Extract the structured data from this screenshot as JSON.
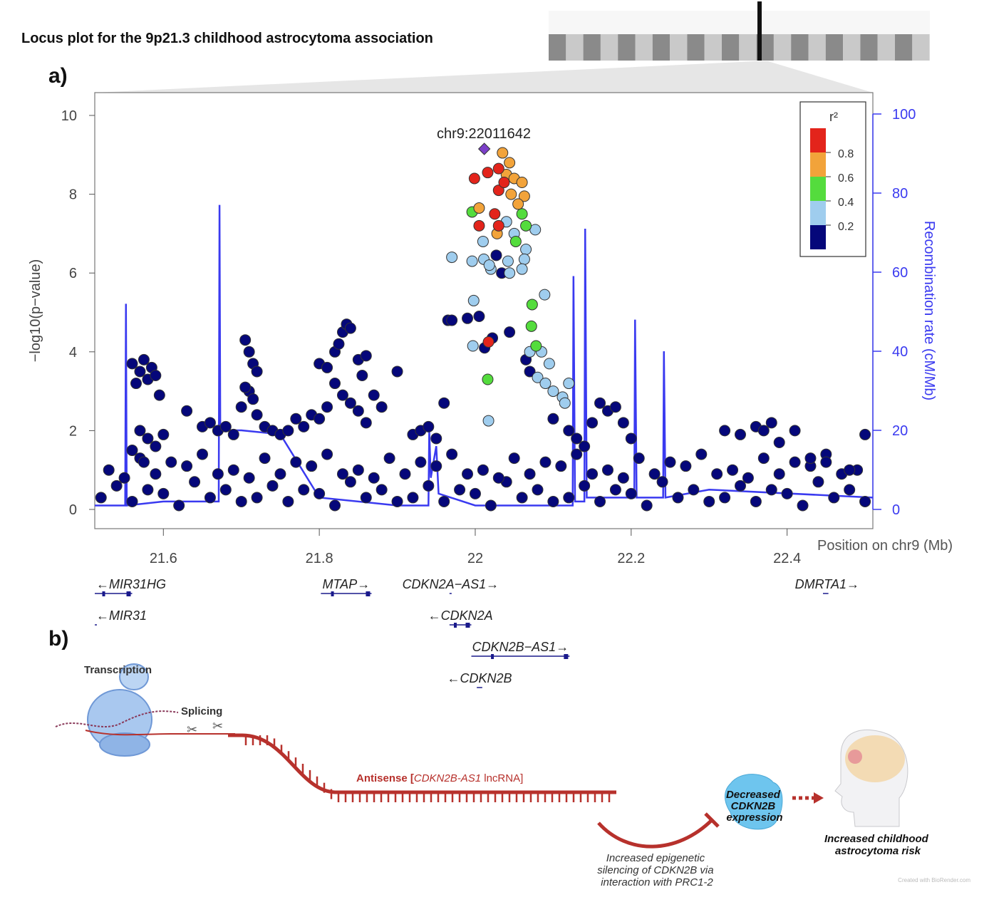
{
  "figure_title": "Locus plot for the 9p21.3 childhood astrocytoma association",
  "panel_a_label": "a)",
  "panel_b_label": "b)",
  "colors": {
    "lead": "#7b3fc8",
    "r2_0.8_1.0": "#e3241b",
    "r2_0.6_0.8": "#f2a33a",
    "r2_0.4_0.6": "#54dc3d",
    "r2_0.2_0.4": "#9fcdee",
    "r2_0.0_0.2": "#05077a",
    "recombination": "#3a3af0",
    "antisense": "#b7312c"
  },
  "chart_data": {
    "type": "scatter",
    "xlabel": "Position on chr9 (Mb)",
    "ylabel": "−log10(p−value)",
    "ylabel_right": "Recombination rate (cM/Mb)",
    "xlim": [
      21.512,
      22.51
    ],
    "ylim": [
      0,
      10
    ],
    "ylim_right": [
      0,
      100
    ],
    "x_ticks": [
      "21.6",
      "21.8",
      "22",
      "22.2",
      "22.4"
    ],
    "y_ticks": [
      "0",
      "2",
      "4",
      "6",
      "8",
      "10"
    ],
    "y_ticks_right": [
      "0",
      "20",
      "40",
      "60",
      "80",
      "100"
    ],
    "lead_snp": {
      "label": "chr9:22011642",
      "x": 22.0116,
      "y": 9.15
    },
    "legend": {
      "title": "r²",
      "labels": [
        "0.8",
        "0.6",
        "0.4",
        "0.2"
      ],
      "placement": "top-right"
    },
    "points": {
      "r2_0.0_0.2": [
        [
          21.52,
          0.3
        ],
        [
          21.54,
          0.6
        ],
        [
          21.56,
          0.2
        ],
        [
          21.58,
          0.5
        ],
        [
          21.6,
          0.4
        ],
        [
          21.62,
          0.1
        ],
        [
          21.64,
          0.7
        ],
        [
          21.66,
          0.3
        ],
        [
          21.68,
          0.5
        ],
        [
          21.7,
          0.2
        ],
        [
          21.72,
          0.3
        ],
        [
          21.74,
          0.6
        ],
        [
          21.76,
          0.2
        ],
        [
          21.78,
          0.5
        ],
        [
          21.8,
          0.4
        ],
        [
          21.82,
          0.1
        ],
        [
          21.84,
          0.7
        ],
        [
          21.86,
          0.3
        ],
        [
          21.88,
          0.5
        ],
        [
          21.9,
          0.2
        ],
        [
          21.92,
          0.3
        ],
        [
          21.94,
          0.6
        ],
        [
          21.96,
          0.2
        ],
        [
          21.98,
          0.5
        ],
        [
          22.0,
          0.4
        ],
        [
          22.02,
          0.1
        ],
        [
          22.04,
          0.7
        ],
        [
          22.06,
          0.3
        ],
        [
          22.08,
          0.5
        ],
        [
          22.1,
          0.2
        ],
        [
          22.12,
          0.3
        ],
        [
          22.14,
          0.6
        ],
        [
          22.16,
          0.2
        ],
        [
          22.18,
          0.5
        ],
        [
          22.2,
          0.4
        ],
        [
          22.22,
          0.1
        ],
        [
          22.24,
          0.7
        ],
        [
          22.26,
          0.3
        ],
        [
          22.28,
          0.5
        ],
        [
          22.3,
          0.2
        ],
        [
          22.32,
          0.3
        ],
        [
          22.34,
          0.6
        ],
        [
          22.36,
          0.2
        ],
        [
          22.38,
          0.5
        ],
        [
          22.4,
          0.4
        ],
        [
          22.42,
          0.1
        ],
        [
          22.44,
          0.7
        ],
        [
          22.46,
          0.3
        ],
        [
          22.48,
          0.5
        ],
        [
          22.5,
          0.2
        ],
        [
          21.53,
          1.0
        ],
        [
          21.55,
          0.8
        ],
        [
          21.57,
          1.3
        ],
        [
          21.59,
          0.9
        ],
        [
          21.61,
          1.2
        ],
        [
          21.63,
          1.1
        ],
        [
          21.65,
          1.4
        ],
        [
          21.67,
          0.9
        ],
        [
          21.69,
          1.0
        ],
        [
          21.71,
          0.8
        ],
        [
          21.73,
          1.3
        ],
        [
          21.75,
          0.9
        ],
        [
          21.77,
          1.2
        ],
        [
          21.79,
          1.1
        ],
        [
          21.81,
          1.4
        ],
        [
          21.83,
          0.9
        ],
        [
          21.85,
          1.0
        ],
        [
          21.87,
          0.8
        ],
        [
          21.89,
          1.3
        ],
        [
          21.91,
          0.9
        ],
        [
          21.93,
          1.2
        ],
        [
          21.95,
          1.1
        ],
        [
          21.97,
          1.4
        ],
        [
          21.99,
          0.9
        ],
        [
          22.01,
          1.0
        ],
        [
          22.03,
          0.8
        ],
        [
          22.05,
          1.3
        ],
        [
          22.07,
          0.9
        ],
        [
          22.09,
          1.2
        ],
        [
          22.11,
          1.1
        ],
        [
          22.13,
          1.4
        ],
        [
          22.15,
          0.9
        ],
        [
          22.17,
          1.0
        ],
        [
          22.19,
          0.8
        ],
        [
          22.21,
          1.3
        ],
        [
          22.23,
          0.9
        ],
        [
          22.25,
          1.2
        ],
        [
          22.27,
          1.1
        ],
        [
          22.29,
          1.4
        ],
        [
          22.31,
          0.9
        ],
        [
          22.33,
          1.0
        ],
        [
          22.35,
          0.8
        ],
        [
          22.37,
          1.3
        ],
        [
          22.39,
          0.9
        ],
        [
          22.41,
          1.2
        ],
        [
          22.43,
          1.1
        ],
        [
          22.45,
          1.4
        ],
        [
          22.47,
          0.9
        ],
        [
          22.49,
          1.0
        ],
        [
          21.56,
          3.7
        ],
        [
          21.57,
          3.5
        ],
        [
          21.575,
          3.8
        ],
        [
          21.58,
          3.3
        ],
        [
          21.585,
          3.6
        ],
        [
          21.59,
          3.4
        ],
        [
          21.565,
          3.2
        ],
        [
          21.595,
          2.9
        ],
        [
          21.57,
          2.0
        ],
        [
          21.58,
          1.8
        ],
        [
          21.59,
          1.6
        ],
        [
          21.6,
          1.9
        ],
        [
          21.56,
          1.5
        ],
        [
          21.575,
          1.2
        ],
        [
          21.63,
          2.5
        ],
        [
          21.65,
          2.1
        ],
        [
          21.66,
          2.2
        ],
        [
          21.67,
          2.0
        ],
        [
          21.68,
          2.1
        ],
        [
          21.69,
          1.9
        ],
        [
          21.7,
          2.6
        ],
        [
          21.71,
          3.0
        ],
        [
          21.705,
          4.3
        ],
        [
          21.71,
          4.0
        ],
        [
          21.715,
          3.7
        ],
        [
          21.72,
          3.5
        ],
        [
          21.705,
          3.1
        ],
        [
          21.715,
          2.8
        ],
        [
          21.72,
          2.4
        ],
        [
          21.73,
          2.1
        ],
        [
          21.74,
          2.0
        ],
        [
          21.75,
          1.9
        ],
        [
          21.76,
          2.0
        ],
        [
          21.77,
          2.3
        ],
        [
          21.78,
          2.1
        ],
        [
          21.79,
          2.4
        ],
        [
          21.8,
          3.7
        ],
        [
          21.81,
          3.6
        ],
        [
          21.82,
          4.0
        ],
        [
          21.825,
          4.2
        ],
        [
          21.83,
          4.5
        ],
        [
          21.835,
          4.7
        ],
        [
          21.84,
          4.6
        ],
        [
          21.85,
          3.8
        ],
        [
          21.86,
          3.9
        ],
        [
          21.82,
          3.2
        ],
        [
          21.83,
          2.9
        ],
        [
          21.84,
          2.7
        ],
        [
          21.85,
          2.5
        ],
        [
          21.81,
          2.6
        ],
        [
          21.8,
          2.3
        ],
        [
          21.86,
          2.2
        ],
        [
          21.87,
          2.9
        ],
        [
          21.88,
          2.6
        ],
        [
          21.9,
          3.5
        ],
        [
          21.855,
          3.4
        ],
        [
          21.92,
          1.9
        ],
        [
          21.93,
          2.0
        ],
        [
          21.94,
          2.1
        ],
        [
          21.95,
          1.8
        ],
        [
          21.96,
          2.7
        ],
        [
          21.965,
          4.8
        ],
        [
          21.97,
          4.8
        ],
        [
          22.1,
          2.3
        ],
        [
          22.12,
          2.0
        ],
        [
          22.13,
          1.8
        ],
        [
          22.14,
          1.6
        ],
        [
          22.15,
          2.2
        ],
        [
          22.16,
          2.7
        ],
        [
          22.17,
          2.5
        ],
        [
          22.18,
          2.6
        ],
        [
          22.19,
          2.2
        ],
        [
          22.2,
          1.8
        ],
        [
          22.32,
          2.0
        ],
        [
          22.34,
          1.9
        ],
        [
          22.36,
          2.1
        ],
        [
          22.37,
          2.0
        ],
        [
          22.38,
          2.2
        ],
        [
          22.39,
          1.7
        ],
        [
          22.41,
          2.0
        ],
        [
          22.43,
          1.3
        ],
        [
          22.45,
          1.2
        ],
        [
          22.48,
          1.0
        ],
        [
          22.5,
          1.9
        ],
        [
          22.027,
          6.45
        ],
        [
          22.034,
          6.0
        ],
        [
          21.99,
          4.85
        ],
        [
          22.005,
          4.9
        ],
        [
          22.022,
          4.35
        ],
        [
          22.012,
          4.1
        ],
        [
          22.044,
          4.5
        ],
        [
          22.065,
          3.8
        ],
        [
          22.07,
          3.5
        ]
      ],
      "r2_0.2_0.4": [
        [
          21.97,
          6.4
        ],
        [
          21.996,
          6.3
        ],
        [
          22.011,
          6.35
        ],
        [
          22.02,
          6.1
        ],
        [
          22.04,
          7.3
        ],
        [
          22.05,
          7.0
        ],
        [
          22.077,
          7.1
        ],
        [
          22.065,
          6.6
        ],
        [
          22.063,
          6.35
        ],
        [
          22.042,
          6.3
        ],
        [
          22.044,
          6.0
        ],
        [
          22.06,
          6.1
        ],
        [
          22.089,
          5.45
        ],
        [
          21.998,
          5.3
        ],
        [
          21.997,
          4.15
        ],
        [
          22.07,
          4.0
        ],
        [
          22.085,
          4.0
        ],
        [
          22.095,
          3.7
        ],
        [
          22.08,
          3.35
        ],
        [
          22.09,
          3.2
        ],
        [
          22.1,
          3.0
        ],
        [
          22.112,
          2.85
        ],
        [
          22.12,
          3.2
        ],
        [
          22.115,
          2.7
        ],
        [
          22.017,
          2.25
        ],
        [
          22.01,
          6.8
        ],
        [
          22.018,
          6.2
        ]
      ],
      "r2_0.4_0.6": [
        [
          21.996,
          7.55
        ],
        [
          22.06,
          7.5
        ],
        [
          22.065,
          7.2
        ],
        [
          22.052,
          6.8
        ],
        [
          22.073,
          5.2
        ],
        [
          22.072,
          4.65
        ],
        [
          22.078,
          4.15
        ],
        [
          22.016,
          3.3
        ]
      ],
      "r2_0.6_0.8": [
        [
          22.035,
          9.05
        ],
        [
          22.044,
          8.8
        ],
        [
          22.04,
          8.5
        ],
        [
          22.05,
          8.4
        ],
        [
          22.06,
          8.3
        ],
        [
          22.063,
          7.95
        ],
        [
          22.055,
          7.75
        ],
        [
          22.005,
          7.65
        ],
        [
          22.028,
          7.0
        ],
        [
          22.046,
          8.0
        ]
      ],
      "r2_0.8_1.0": [
        [
          21.999,
          8.4
        ],
        [
          22.016,
          8.55
        ],
        [
          22.03,
          8.65
        ],
        [
          22.03,
          8.1
        ],
        [
          22.037,
          8.3
        ],
        [
          22.025,
          7.5
        ],
        [
          22.005,
          7.2
        ],
        [
          22.03,
          7.2
        ],
        [
          22.017,
          4.25
        ]
      ]
    },
    "recombination_rate": [
      [
        21.512,
        1
      ],
      [
        21.551,
        1
      ],
      [
        21.552,
        52
      ],
      [
        21.553,
        1
      ],
      [
        21.6,
        2
      ],
      [
        21.671,
        2
      ],
      [
        21.672,
        77
      ],
      [
        21.673,
        20
      ],
      [
        21.7,
        20
      ],
      [
        21.75,
        19
      ],
      [
        21.8,
        3
      ],
      [
        21.9,
        1
      ],
      [
        21.94,
        1
      ],
      [
        21.941,
        20
      ],
      [
        21.943,
        8
      ],
      [
        21.95,
        16
      ],
      [
        21.953,
        4
      ],
      [
        22.0,
        1
      ],
      [
        22.125,
        1
      ],
      [
        22.126,
        59
      ],
      [
        22.128,
        2
      ],
      [
        22.14,
        2
      ],
      [
        22.141,
        71
      ],
      [
        22.143,
        3
      ],
      [
        22.204,
        3
      ],
      [
        22.205,
        48
      ],
      [
        22.207,
        3
      ],
      [
        22.241,
        3
      ],
      [
        22.242,
        40
      ],
      [
        22.244,
        3
      ],
      [
        22.3,
        5
      ],
      [
        22.51,
        3
      ]
    ]
  },
  "genes": [
    {
      "name": "MIR31HG",
      "strand": "-",
      "start": 21.512,
      "end": 21.56,
      "row": 0
    },
    {
      "name": "MIR31",
      "strand": "-",
      "start": 21.512,
      "end": 21.513,
      "row": 1
    },
    {
      "name": "MTAP",
      "strand": "+",
      "start": 21.802,
      "end": 21.867,
      "row": 0
    },
    {
      "name": "CDKN2A−AS1",
      "strand": "+",
      "start": 21.967,
      "end": 21.969,
      "row": 0
    },
    {
      "name": "CDKN2A",
      "strand": "-",
      "start": 21.967,
      "end": 21.995,
      "row": 1
    },
    {
      "name": "CDKN2B−AS1",
      "strand": "+",
      "start": 21.995,
      "end": 22.121,
      "row": 2
    },
    {
      "name": "CDKN2B",
      "strand": "-",
      "start": 22.002,
      "end": 22.009,
      "row": 3
    },
    {
      "name": "DMRTA1",
      "strand": "+",
      "start": 22.446,
      "end": 22.453,
      "row": 0
    }
  ],
  "panel_b": {
    "transcription": "Transcription",
    "splicing": "Splicing",
    "antisense_prefix": "Antisense [",
    "antisense_gene": "CDKN2B-AS1",
    "antisense_suffix": " lncRNA]",
    "silencing_lines": [
      "Increased epigenetic",
      "silencing of CDKN2B via",
      "interaction with PRC1-2"
    ],
    "decreased_lines": [
      "Decreased",
      "CDKN2B",
      "expression"
    ],
    "risk_lines": [
      "Increased childhood",
      "astrocytoma risk"
    ],
    "credit": "Created with BioRender.com"
  }
}
